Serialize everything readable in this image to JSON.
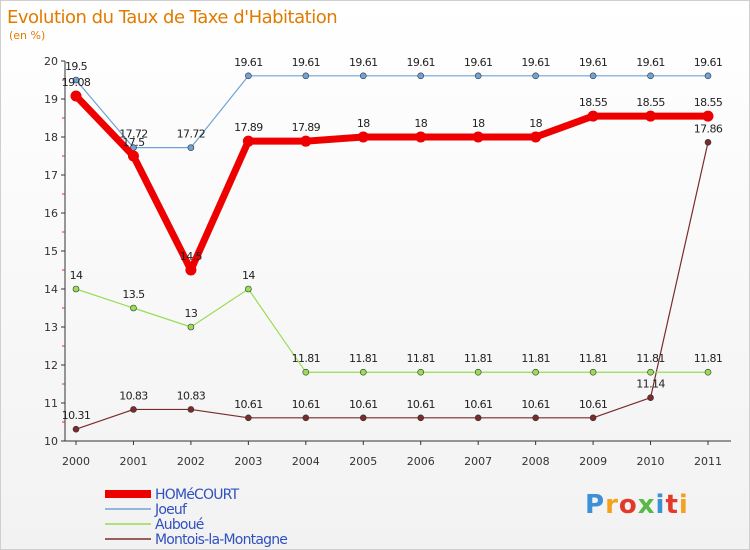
{
  "chart_data": {
    "type": "line",
    "title": "Evolution du Taux de Taxe d'Habitation",
    "subtitle": "(en %)",
    "x": [
      "2000",
      "2001",
      "2002",
      "2003",
      "2004",
      "2005",
      "2006",
      "2007",
      "2008",
      "2009",
      "2010",
      "2011"
    ],
    "ylim": [
      10,
      20
    ],
    "yticks": [
      "10",
      "11",
      "12",
      "13",
      "14",
      "15",
      "16",
      "17",
      "18",
      "19",
      "20"
    ],
    "grid": false,
    "legend_position": "bottom-left",
    "series": [
      {
        "name": "HOMéCOURT",
        "color": "#ee0000",
        "values": [
          19.08,
          17.5,
          14.5,
          17.89,
          17.89,
          18,
          18,
          18,
          18,
          18.55,
          18.55,
          18.55
        ],
        "labels": [
          "19.08",
          "17.5",
          "14.5",
          "17.89",
          "17.89",
          "18",
          "18",
          "18",
          "18",
          "18.55",
          "18.55",
          "18.55"
        ]
      },
      {
        "name": "Joeuf",
        "color": "#6fa3d8",
        "values": [
          19.5,
          17.72,
          17.72,
          19.61,
          19.61,
          19.61,
          19.61,
          19.61,
          19.61,
          19.61,
          19.61,
          19.61
        ],
        "labels": [
          "19.5",
          "17.72",
          "17.72",
          "19.61",
          "19.61",
          "19.61",
          "19.61",
          "19.61",
          "19.61",
          "19.61",
          "19.61",
          "19.61"
        ]
      },
      {
        "name": "Auboué",
        "color": "#99dd55",
        "values": [
          14,
          13.5,
          13,
          14,
          11.81,
          11.81,
          11.81,
          11.81,
          11.81,
          11.81,
          11.81,
          11.81
        ],
        "labels": [
          "14",
          "13.5",
          "13",
          "14",
          "11.81",
          "11.81",
          "11.81",
          "11.81",
          "11.81",
          "11.81",
          "11.81",
          "11.81"
        ]
      },
      {
        "name": "Montois-la-Montagne",
        "color": "#7a2c2c",
        "values": [
          10.31,
          10.83,
          10.83,
          10.61,
          10.61,
          10.61,
          10.61,
          10.61,
          10.61,
          10.61,
          11.14,
          17.86
        ],
        "labels": [
          "10.31",
          "10.83",
          "10.83",
          "10.61",
          "10.61",
          "10.61",
          "10.61",
          "10.61",
          "10.61",
          "10.61",
          "11.14",
          "17.86"
        ]
      }
    ]
  },
  "logo": {
    "text": "Proxiti",
    "colors": [
      "#3d8fd8",
      "#f4a21c",
      "#e23a2a",
      "#58b947",
      "#3d8fd8",
      "#e23a2a",
      "#f4a21c"
    ]
  }
}
